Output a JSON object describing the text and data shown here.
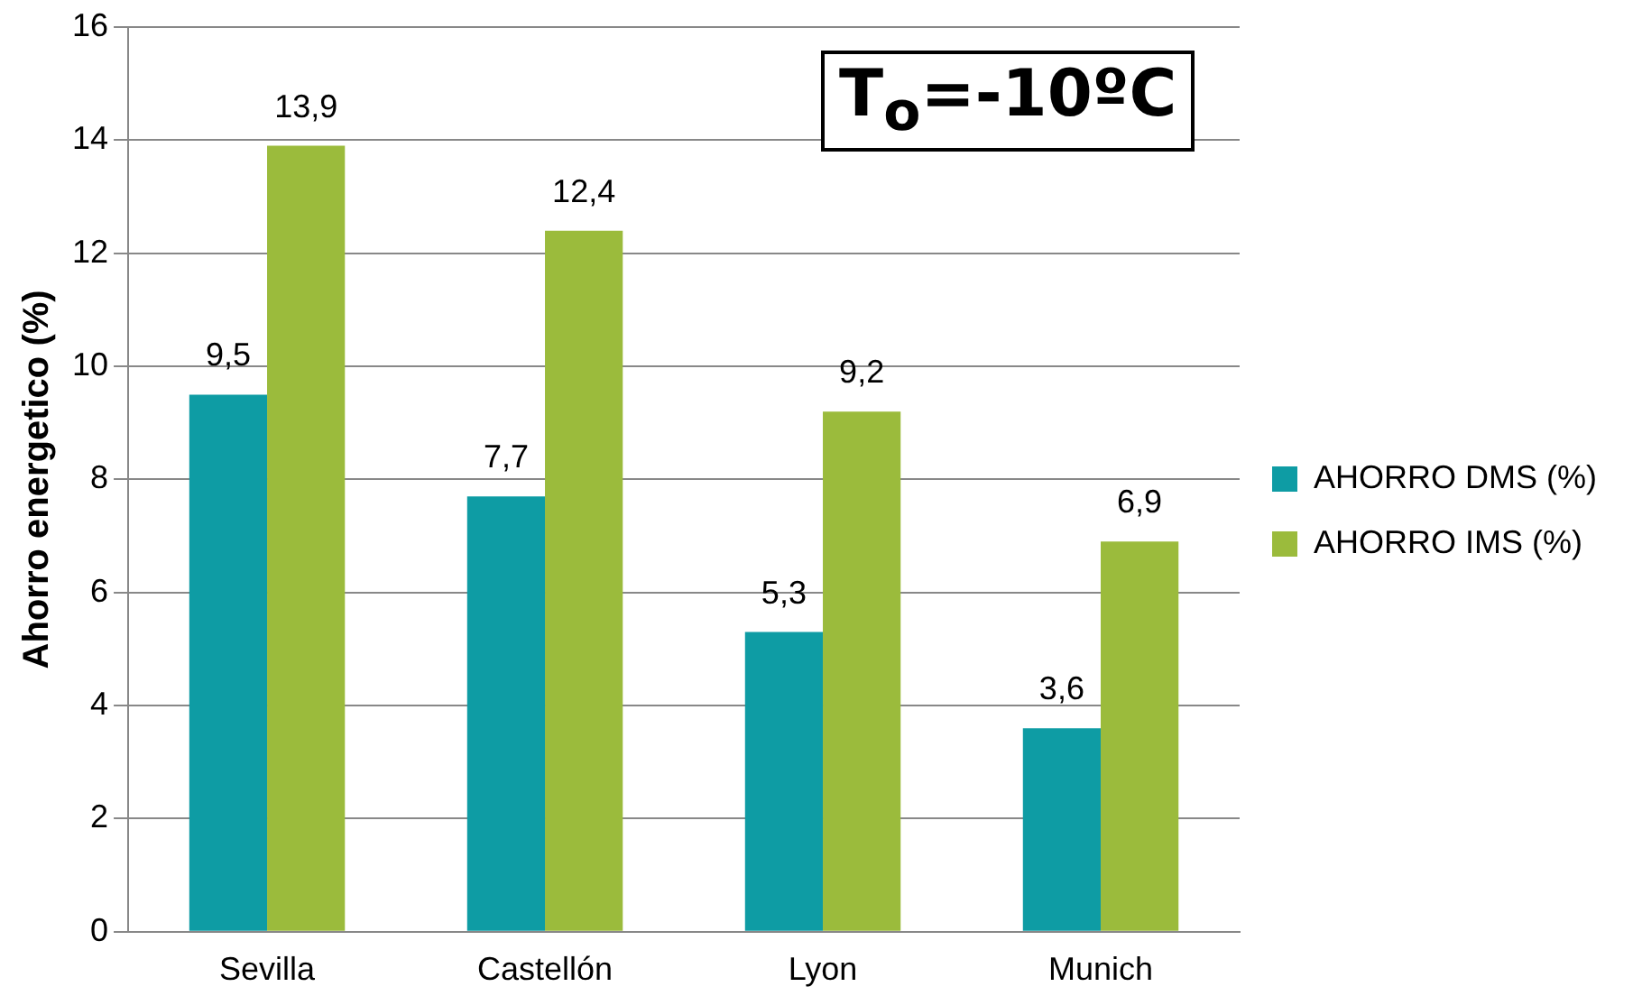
{
  "chart_data": {
    "type": "bar",
    "ylabel": "Ahorro energetico (%)",
    "categories": [
      "Sevilla",
      "Castellón",
      "Lyon",
      "Munich"
    ],
    "series": [
      {
        "name": "AHORRO DMS (%)",
        "color": "#0e9ca4",
        "values": [
          9.5,
          7.7,
          5.3,
          3.6
        ],
        "value_labels": [
          "9,5",
          "7,7",
          "5,3",
          "3,6"
        ]
      },
      {
        "name": "AHORRO IMS (%)",
        "color": "#9bbb3c",
        "values": [
          13.9,
          12.4,
          9.2,
          6.9
        ],
        "value_labels": [
          "13,9",
          "12,4",
          "9,2",
          "6,9"
        ]
      }
    ],
    "ylim": [
      0,
      16
    ],
    "yticks": [
      0,
      2,
      4,
      6,
      8,
      10,
      12,
      14,
      16
    ],
    "grid": "y",
    "legend": "right",
    "annotations": [
      "T$_{o}$=-10ºC"
    ]
  }
}
